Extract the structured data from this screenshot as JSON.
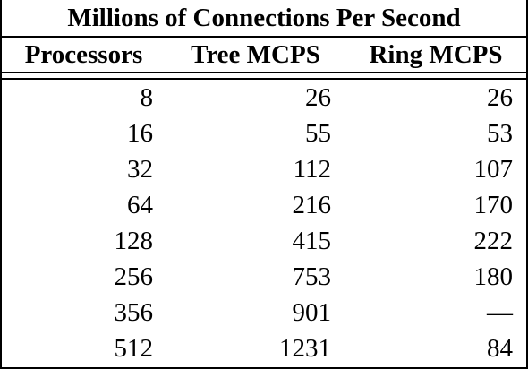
{
  "table": {
    "title": "Millions of Connections Per Second",
    "headers": [
      "Processors",
      "Tree MCPS",
      "Ring MCPS"
    ],
    "rows": [
      [
        "8",
        "26",
        "26"
      ],
      [
        "16",
        "55",
        "53"
      ],
      [
        "32",
        "112",
        "107"
      ],
      [
        "64",
        "216",
        "170"
      ],
      [
        "128",
        "415",
        "222"
      ],
      [
        "256",
        "753",
        "180"
      ],
      [
        "356",
        "901",
        "—"
      ],
      [
        "512",
        "1231",
        "84"
      ]
    ]
  }
}
